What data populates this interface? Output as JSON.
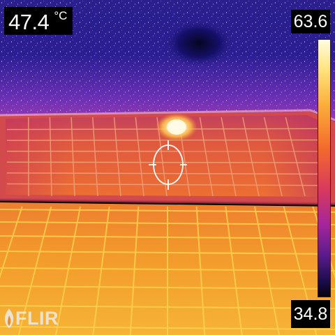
{
  "spot_meter": {
    "value": "47.4",
    "unit": "°C"
  },
  "temperature_scale": {
    "max": "63.6",
    "min": "34.8",
    "palette": [
      "#fffde0",
      "#ffe27a",
      "#fbb03b",
      "#f46b2c",
      "#d93a5c",
      "#a3269a",
      "#5a1b8c",
      "#1a0d4a",
      "#05040f"
    ]
  },
  "brand": {
    "logo_text": "FLIR",
    "logo_icon": "flame-icon"
  },
  "crosshair": {
    "icon": "crosshair-icon"
  },
  "colors": {
    "sky_dark": "#1c1780",
    "sky_purple": "#5a2fb0",
    "panel_upper": "#e8643a",
    "panel_lower": "#f2a62e",
    "hotspot": "#fffbe0",
    "grid_line": "#ffd24d"
  }
}
